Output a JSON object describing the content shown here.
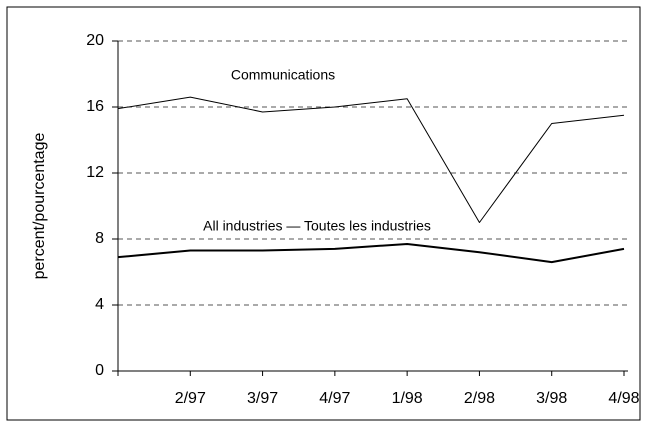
{
  "chart_data": {
    "type": "line",
    "ylabel": "percent/pourcentage",
    "categories": [
      null,
      "2/97",
      "3/97",
      "4/97",
      "1/98",
      "2/98",
      "3/98",
      "4/98"
    ],
    "series": [
      {
        "name": "Communications",
        "color": "#000000",
        "values": [
          15.9,
          16.6,
          15.7,
          16.0,
          16.5,
          9.0,
          15.0,
          15.5
        ]
      },
      {
        "name": "All industries — Toutes les industries",
        "color": "#000000",
        "values": [
          6.9,
          7.3,
          7.3,
          7.4,
          7.7,
          7.2,
          6.6,
          7.4
        ]
      }
    ],
    "ylim": [
      0,
      20
    ],
    "yticks": [
      0,
      4,
      8,
      12,
      16,
      20
    ],
    "grid": true
  }
}
